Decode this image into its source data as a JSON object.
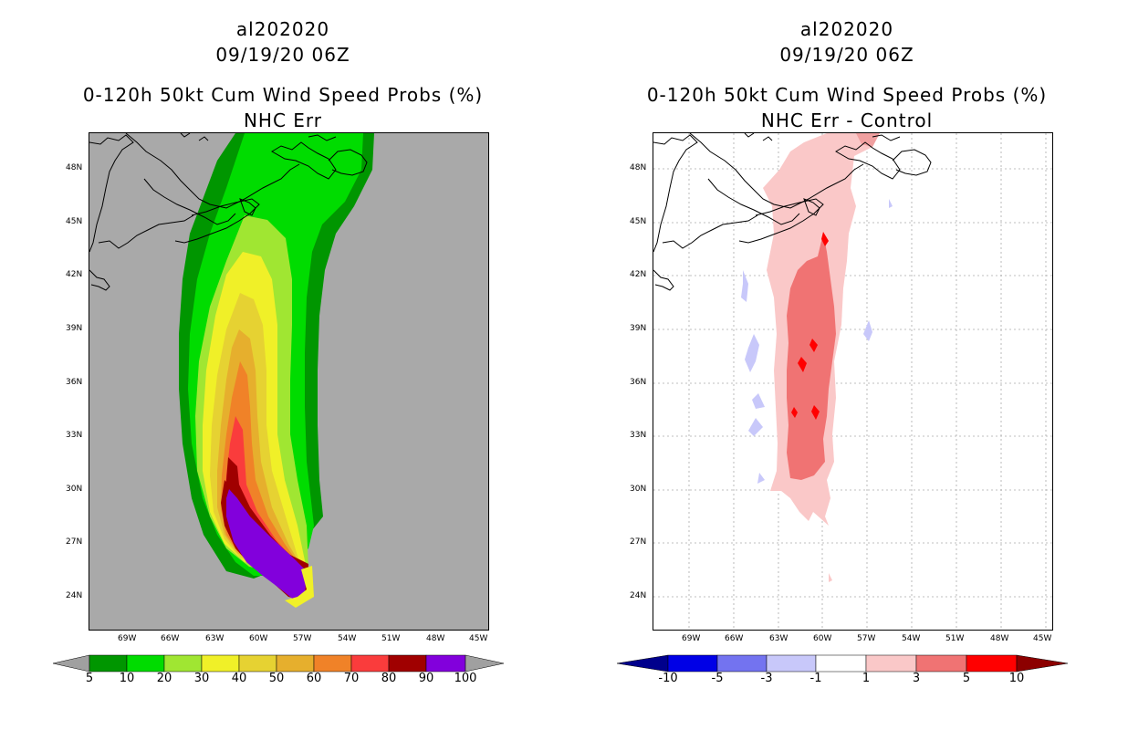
{
  "left_panel": {
    "storm_id": "al202020",
    "datetime": "09/19/20 06Z",
    "product": "0-120h 50kt Cum Wind Speed Probs (%)",
    "subtitle": "NHC Err",
    "lat_ticks": [
      "48N",
      "45N",
      "42N",
      "39N",
      "36N",
      "33N",
      "30N",
      "27N",
      "24N"
    ],
    "lon_ticks": [
      "69W",
      "66W",
      "63W",
      "60W",
      "57W",
      "54W",
      "51W",
      "48W",
      "45W"
    ],
    "colorbar": {
      "labels": [
        "5",
        "10",
        "20",
        "30",
        "40",
        "50",
        "60",
        "70",
        "80",
        "90",
        "100"
      ],
      "colors": [
        "#009600",
        "#00dc00",
        "#a0e632",
        "#f0f028",
        "#e6d232",
        "#e6af2d",
        "#f08228",
        "#fa3c3c",
        "#a00000",
        "#8200dc"
      ],
      "end_color": "#a0a0a0"
    },
    "background": "#a9a9a9"
  },
  "right_panel": {
    "storm_id": "al202020",
    "datetime": "09/19/20 06Z",
    "product": "0-120h 50kt Cum Wind Speed Probs (%)",
    "subtitle": "NHC Err - Control",
    "lat_ticks": [
      "48N",
      "45N",
      "42N",
      "39N",
      "36N",
      "33N",
      "30N",
      "27N",
      "24N"
    ],
    "lon_ticks": [
      "69W",
      "66W",
      "63W",
      "60W",
      "57W",
      "54W",
      "51W",
      "48W",
      "45W"
    ],
    "colorbar": {
      "labels": [
        "-10",
        "-5",
        "-3",
        "-1",
        "1",
        "3",
        "5",
        "10"
      ],
      "colors": [
        "#0000e6",
        "#7373f0",
        "#c8c8fa",
        "#ffffff",
        "#fac8c8",
        "#f07373",
        "#ff0000"
      ],
      "low_end": "#00008c",
      "high_end": "#8c0000"
    },
    "background": "#ffffff"
  }
}
